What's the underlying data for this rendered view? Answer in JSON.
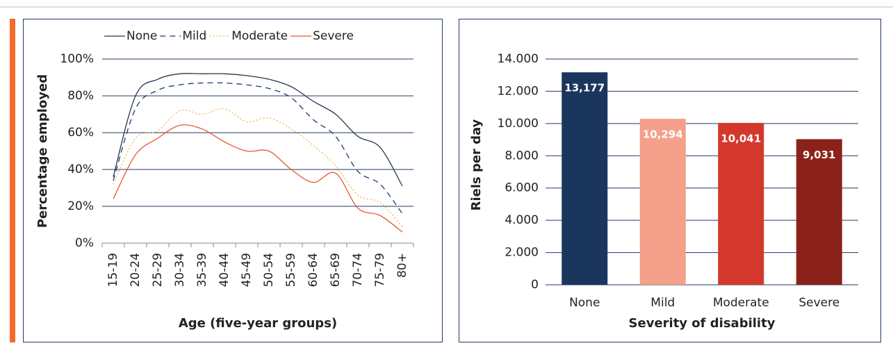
{
  "chart_data": [
    {
      "type": "line",
      "ylabel": "Percentage employed",
      "xlabel": "Age (five-year groups)",
      "categories": [
        "15-19",
        "20-24",
        "25-29",
        "30-34",
        "35-39",
        "40-44",
        "45-49",
        "50-54",
        "55-59",
        "60-64",
        "65-69",
        "70-74",
        "75-79",
        "80+"
      ],
      "ylim": [
        0,
        100
      ],
      "yticks": [
        {
          "value": 0,
          "label": "0%"
        },
        {
          "value": 20,
          "label": "20%"
        },
        {
          "value": 40,
          "label": "40%"
        },
        {
          "value": 60,
          "label": "60%"
        },
        {
          "value": 80,
          "label": "80%"
        },
        {
          "value": 100,
          "label": "100%"
        }
      ],
      "grid": true,
      "legend": "top",
      "series": [
        {
          "name": "None",
          "color": "#2b3448",
          "dash": "solid",
          "values": [
            36,
            80,
            89,
            92,
            92,
            92,
            91,
            89,
            85,
            77,
            70,
            58,
            52,
            31
          ]
        },
        {
          "name": "Mild",
          "color": "#1f3864",
          "dash": "dashed",
          "values": [
            34,
            73,
            83,
            86,
            87,
            87,
            86,
            84,
            79,
            67,
            58,
            39,
            32,
            16
          ]
        },
        {
          "name": "Moderate",
          "color": "#f2b33d",
          "dash": "dotted",
          "values": [
            32,
            57,
            61,
            72,
            70,
            73,
            66,
            68,
            62,
            53,
            42,
            26,
            22,
            9
          ]
        },
        {
          "name": "Severe",
          "color": "#e8552e",
          "dash": "solid",
          "values": [
            24,
            48,
            57,
            64,
            62,
            55,
            50,
            50,
            40,
            33,
            38,
            19,
            15,
            6
          ]
        }
      ]
    },
    {
      "type": "bar",
      "ylabel": "Riels per day",
      "xlabel": "Severity of disability",
      "categories": [
        "None",
        "Mild",
        "Moderate",
        "Severe"
      ],
      "values": [
        13177,
        10294,
        10041,
        9031
      ],
      "value_labels": [
        "13,177",
        "10,294",
        "10,041",
        "9,031"
      ],
      "colors": [
        "#1b365d",
        "#f4a08a",
        "#d4382c",
        "#8b2219"
      ],
      "ylim": [
        0,
        14000
      ],
      "yticks": [
        0,
        {
          "value": 2000,
          "label": "2.000"
        },
        {
          "value": 4000,
          "label": "4.000"
        },
        {
          "value": 6000,
          "label": "6.000"
        },
        {
          "value": 8000,
          "label": "8.000"
        },
        {
          "value": 10000,
          "label": "10.000"
        },
        {
          "value": 12000,
          "label": "12.000"
        },
        {
          "value": 14000,
          "label": "14.000"
        }
      ],
      "grid": true
    }
  ]
}
